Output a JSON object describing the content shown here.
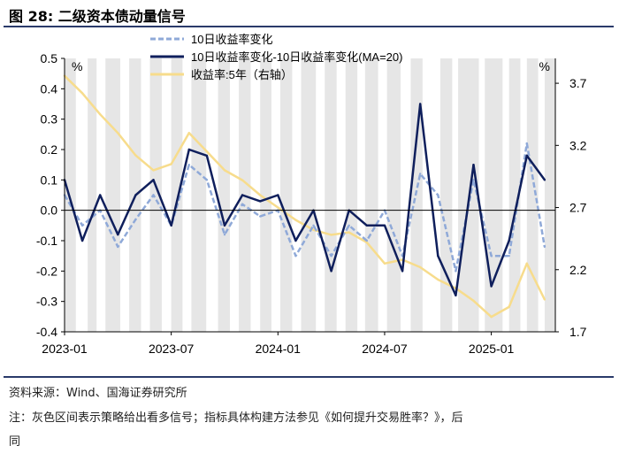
{
  "figure": {
    "title": "图 28:  二级资本债动量信号",
    "source": "资料来源：Wind、国海证券研究所",
    "note_line1": "注：灰色区间表示策略给出看多信号；指标具体构建方法参见《如何提升交易胜率？》，后",
    "note_line2": "同"
  },
  "colors": {
    "series1": "#8fa9d8",
    "series2": "#0f1f5c",
    "series3": "#f7dc8c",
    "shade": "#e6e6e6",
    "zero_line": "#000000"
  },
  "chart_data": {
    "type": "line",
    "title": "二级资本债动量信号",
    "left_axis": {
      "unit": "%",
      "min": -0.4,
      "max": 0.5,
      "ticks": [
        0.5,
        0.4,
        0.3,
        0.2,
        0.1,
        0.0,
        -0.1,
        -0.2,
        -0.3,
        -0.4
      ],
      "tick_labels": [
        "0.5",
        "0.4",
        "0.3",
        "0.2",
        "0.1",
        "0.0",
        "-0.1",
        "-0.2",
        "-0.3",
        "-0.4"
      ]
    },
    "right_axis": {
      "unit": "%",
      "min": 1.7,
      "max": 3.9,
      "ticks": [
        3.7,
        3.2,
        2.7,
        2.2,
        1.7
      ],
      "tick_labels": [
        "3.7",
        "3.2",
        "2.7",
        "2.2",
        "1.7"
      ]
    },
    "x_axis": {
      "start": "2023-01",
      "end": "2025-04",
      "ticks": [
        "2023-01",
        "2023-07",
        "2024-01",
        "2024-07",
        "2025-01"
      ]
    },
    "legend": [
      "10日收益率变化",
      "10日收益率变化-10日收益率变化(MA=20)",
      "收益率:5年（右轴）"
    ],
    "legend_position": "top-center",
    "shaded_bull_periods": [
      [
        "2023-01",
        "2023-01-20"
      ],
      [
        "2023-02-10",
        "2023-02-25"
      ],
      [
        "2023-03-10",
        "2023-04-05"
      ],
      [
        "2023-04-20",
        "2023-05-10"
      ],
      [
        "2023-05-25",
        "2023-06-15"
      ],
      [
        "2023-07-01",
        "2023-07-20"
      ],
      [
        "2023-08-05",
        "2023-08-30"
      ],
      [
        "2023-09-20",
        "2023-10-10"
      ],
      [
        "2023-10-25",
        "2023-11-15"
      ],
      [
        "2023-12-01",
        "2023-12-20"
      ],
      [
        "2024-01-05",
        "2024-01-25"
      ],
      [
        "2024-02-10",
        "2024-03-05"
      ],
      [
        "2024-03-20",
        "2024-04-10"
      ],
      [
        "2024-04-25",
        "2024-05-15"
      ],
      [
        "2024-05-28",
        "2024-06-20"
      ],
      [
        "2024-07-05",
        "2024-07-28"
      ],
      [
        "2024-08-15",
        "2024-09-05"
      ],
      [
        "2024-10-05",
        "2024-10-25"
      ],
      [
        "2024-11-05",
        "2024-12-10"
      ],
      [
        "2024-12-20",
        "2025-01-20"
      ],
      [
        "2025-02-01",
        "2025-02-20"
      ],
      [
        "2025-03-01",
        "2025-03-20"
      ],
      [
        "2025-04-01",
        "2025-04-20"
      ]
    ],
    "series": [
      {
        "name": "10日收益率变化",
        "axis": "left",
        "style": "dashed",
        "x": [
          "2023-01",
          "2023-02",
          "2023-03",
          "2023-04",
          "2023-05",
          "2023-06",
          "2023-07",
          "2023-08",
          "2023-09",
          "2023-10",
          "2023-11",
          "2023-12",
          "2024-01",
          "2024-02",
          "2024-03",
          "2024-04",
          "2024-05",
          "2024-06",
          "2024-07",
          "2024-08",
          "2024-09",
          "2024-10",
          "2024-11",
          "2024-12",
          "2025-01",
          "2025-02",
          "2025-03",
          "2025-04"
        ],
        "values": [
          0.05,
          -0.05,
          0.0,
          -0.12,
          -0.03,
          0.05,
          -0.05,
          0.15,
          0.1,
          -0.08,
          0.02,
          -0.02,
          0.0,
          -0.15,
          -0.05,
          -0.15,
          -0.05,
          -0.1,
          0.0,
          -0.15,
          0.12,
          0.05,
          -0.2,
          0.1,
          -0.15,
          -0.15,
          0.22,
          -0.12
        ]
      },
      {
        "name": "10日收益率变化-10日收益率变化(MA=20)",
        "axis": "left",
        "style": "solid",
        "x": [
          "2023-01",
          "2023-02",
          "2023-03",
          "2023-04",
          "2023-05",
          "2023-06",
          "2023-07",
          "2023-08",
          "2023-09",
          "2023-10",
          "2023-11",
          "2023-12",
          "2024-01",
          "2024-02",
          "2024-03",
          "2024-04",
          "2024-05",
          "2024-06",
          "2024-07",
          "2024-08",
          "2024-09",
          "2024-10",
          "2024-11",
          "2024-12",
          "2025-01",
          "2025-02",
          "2025-03",
          "2025-04"
        ],
        "values": [
          0.1,
          -0.1,
          0.05,
          -0.08,
          0.05,
          0.1,
          -0.05,
          0.2,
          0.18,
          -0.05,
          0.05,
          0.03,
          0.05,
          -0.1,
          0.0,
          -0.2,
          0.0,
          -0.05,
          -0.05,
          -0.2,
          0.35,
          -0.15,
          -0.28,
          0.15,
          -0.25,
          -0.1,
          0.18,
          0.1
        ]
      },
      {
        "name": "收益率:5年（右轴）",
        "axis": "right",
        "style": "solid",
        "x": [
          "2023-01",
          "2023-02",
          "2023-03",
          "2023-04",
          "2023-05",
          "2023-06",
          "2023-07",
          "2023-08",
          "2023-09",
          "2023-10",
          "2023-11",
          "2023-12",
          "2024-01",
          "2024-02",
          "2024-03",
          "2024-04",
          "2024-05",
          "2024-06",
          "2024-07",
          "2024-08",
          "2024-09",
          "2024-10",
          "2024-11",
          "2024-12",
          "2025-01",
          "2025-02",
          "2025-03",
          "2025-04"
        ],
        "values": [
          3.76,
          3.62,
          3.45,
          3.3,
          3.12,
          3.0,
          3.05,
          3.3,
          3.15,
          3.0,
          2.92,
          2.8,
          2.7,
          2.6,
          2.52,
          2.48,
          2.5,
          2.42,
          2.25,
          2.28,
          2.22,
          2.12,
          2.05,
          1.95,
          1.82,
          1.9,
          2.25,
          1.96
        ]
      }
    ]
  }
}
